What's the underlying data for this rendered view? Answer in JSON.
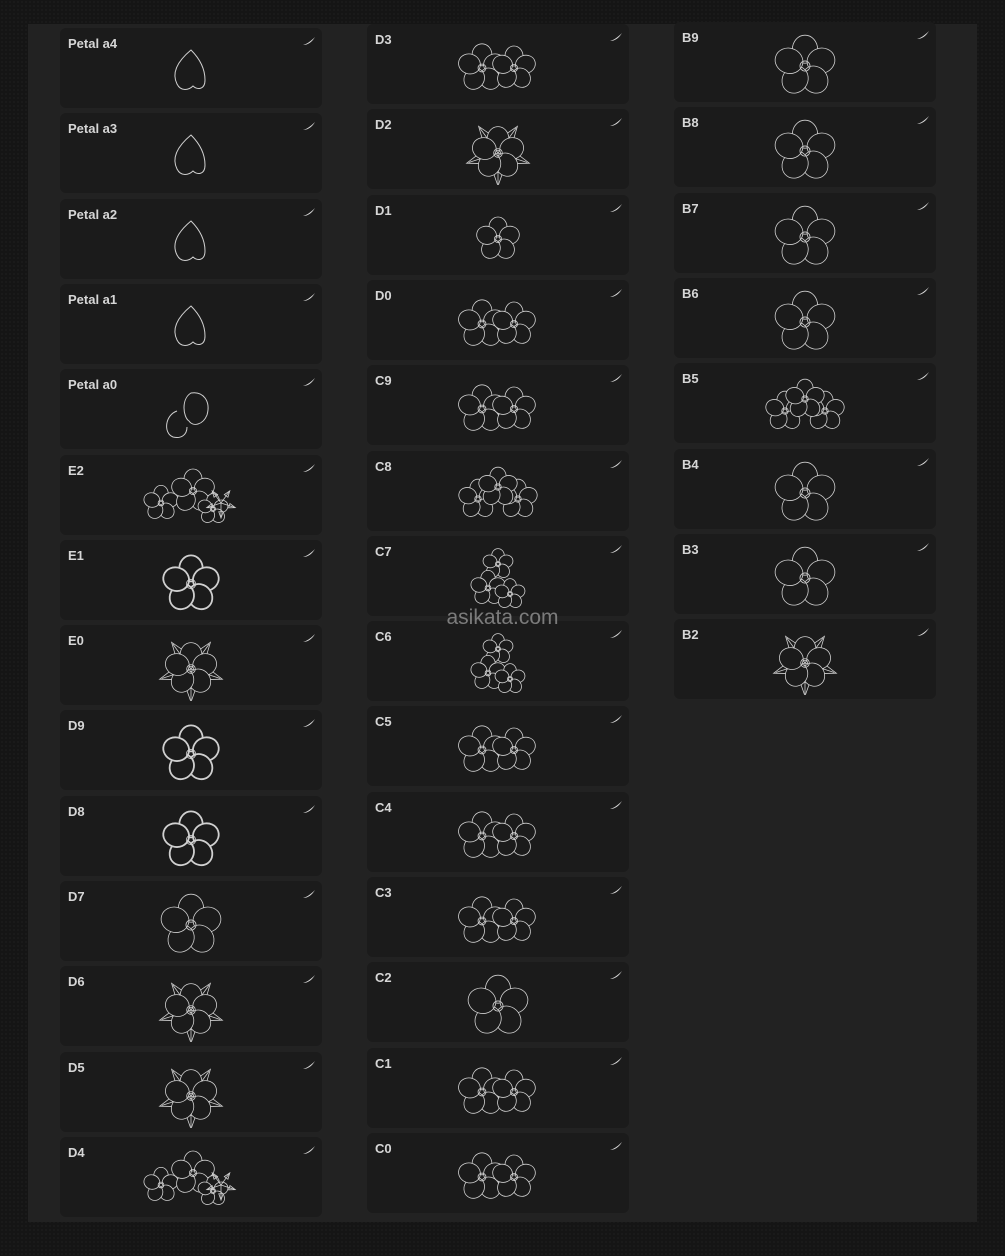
{
  "watermark": "asikata.com",
  "columns": [
    [
      {
        "name": "Petal a4",
        "preview": "petal"
      },
      {
        "name": "Petal a3",
        "preview": "petal"
      },
      {
        "name": "Petal a2",
        "preview": "petal"
      },
      {
        "name": "Petal a1",
        "preview": "petal"
      },
      {
        "name": "Petal a0",
        "preview": "petal-pair"
      },
      {
        "name": "E2",
        "preview": "cluster"
      },
      {
        "name": "E1",
        "preview": "flower-bold"
      },
      {
        "name": "E0",
        "preview": "flower-leaves"
      },
      {
        "name": "D9",
        "preview": "flower-bold"
      },
      {
        "name": "D8",
        "preview": "flower-bold"
      },
      {
        "name": "D7",
        "preview": "flower"
      },
      {
        "name": "D6",
        "preview": "flower-leaves"
      },
      {
        "name": "D5",
        "preview": "flower-leaves"
      },
      {
        "name": "D4",
        "preview": "cluster"
      }
    ],
    [
      {
        "name": "D3",
        "preview": "flower-double"
      },
      {
        "name": "D2",
        "preview": "flower-leaves"
      },
      {
        "name": "D1",
        "preview": "flower-small"
      },
      {
        "name": "D0",
        "preview": "flower-double"
      },
      {
        "name": "C9",
        "preview": "flower-double"
      },
      {
        "name": "C8",
        "preview": "flower-triple"
      },
      {
        "name": "C7",
        "preview": "cluster-vertical"
      },
      {
        "name": "C6",
        "preview": "cluster-vertical"
      },
      {
        "name": "C5",
        "preview": "flower-double"
      },
      {
        "name": "C4",
        "preview": "flower-double"
      },
      {
        "name": "C3",
        "preview": "flower-double"
      },
      {
        "name": "C2",
        "preview": "flower"
      },
      {
        "name": "C1",
        "preview": "flower-double"
      },
      {
        "name": "C0",
        "preview": "flower-double"
      }
    ],
    [
      {
        "name": "B9",
        "preview": "flower"
      },
      {
        "name": "B8",
        "preview": "flower"
      },
      {
        "name": "B7",
        "preview": "flower"
      },
      {
        "name": "B6",
        "preview": "flower"
      },
      {
        "name": "B5",
        "preview": "flower-triple"
      },
      {
        "name": "B4",
        "preview": "flower"
      },
      {
        "name": "B3",
        "preview": "flower"
      },
      {
        "name": "B2",
        "preview": "flower-leaves"
      }
    ]
  ],
  "colors": {
    "panel": "#222222",
    "card": "#1b1b1b",
    "label": "#d6d6d6",
    "stroke": "#d0d0d0"
  }
}
